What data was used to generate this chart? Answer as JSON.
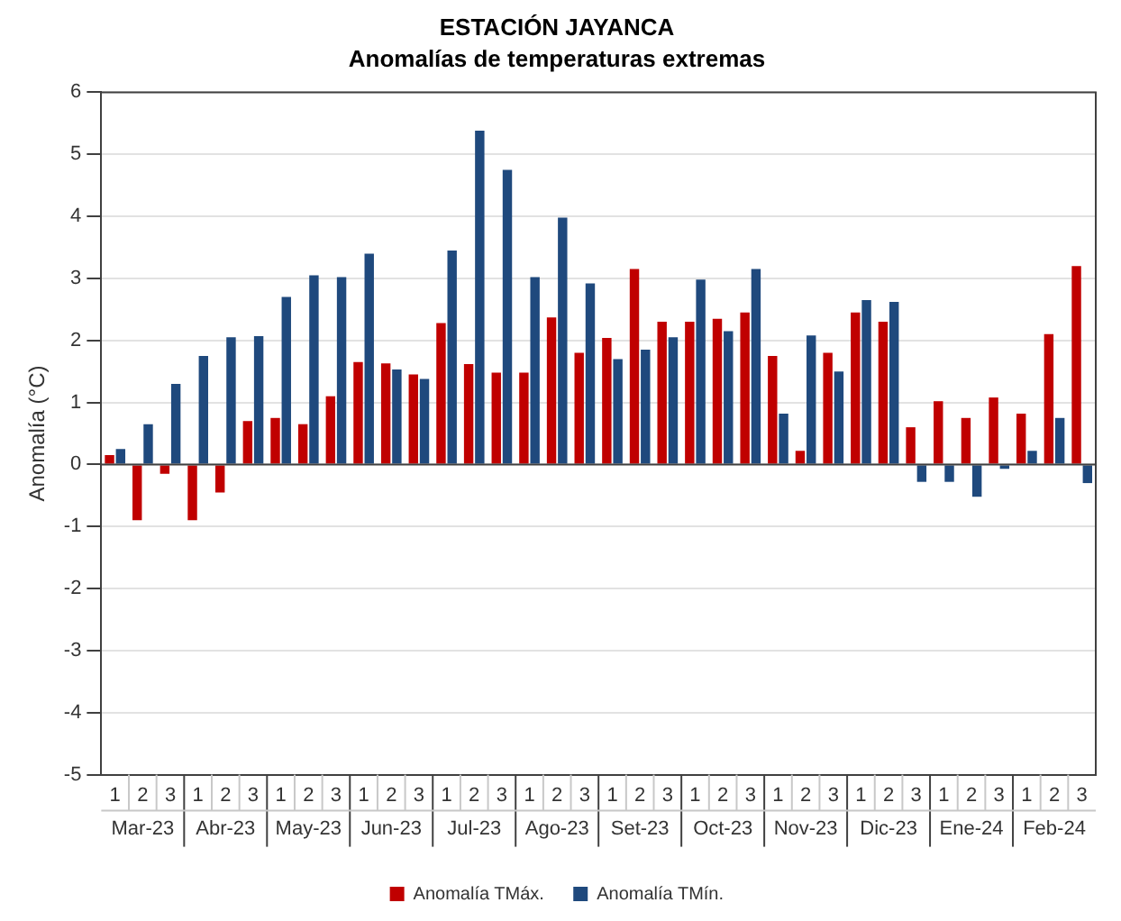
{
  "chart_data": {
    "type": "bar",
    "title": "ESTACIÓN JAYANCA",
    "subtitle": "Anomalías de temperaturas extremas",
    "ylabel": "Anomalía (°C)",
    "categories": [
      "1",
      "2",
      "3",
      "1",
      "2",
      "3",
      "1",
      "2",
      "3",
      "1",
      "2",
      "3",
      "1",
      "2",
      "3",
      "1",
      "2",
      "3",
      "1",
      "2",
      "3",
      "1",
      "2",
      "3",
      "1",
      "2",
      "3",
      "1",
      "2",
      "3",
      "1",
      "2",
      "3",
      "1",
      "2",
      "3"
    ],
    "annotations": [
      "Mar-23",
      "Abr-23",
      "May-23",
      "Jun-23",
      "Jul-23",
      "Ago-23",
      "Set-23",
      "Oct-23",
      "Nov-23",
      "Dic-23",
      "Ene-24",
      "Feb-24"
    ],
    "series": [
      {
        "name": "Anomalía TMáx.",
        "color": "#c00000",
        "values": [
          0.15,
          -0.9,
          -0.15,
          -0.9,
          -0.45,
          0.7,
          0.75,
          0.65,
          1.1,
          1.65,
          1.63,
          1.45,
          2.28,
          1.62,
          1.48,
          1.48,
          2.37,
          1.8,
          2.04,
          3.15,
          2.3,
          2.3,
          2.35,
          2.45,
          1.75,
          0.22,
          1.8,
          2.45,
          2.3,
          0.6,
          1.02,
          0.75,
          1.08,
          0.82,
          2.1,
          3.2
        ]
      },
      {
        "name": "Anomalía TMín.",
        "color": "#1f497d",
        "values": [
          0.25,
          0.65,
          1.3,
          1.75,
          2.05,
          2.07,
          2.7,
          3.05,
          3.02,
          3.4,
          1.53,
          1.38,
          3.45,
          5.38,
          4.75,
          3.02,
          3.98,
          2.92,
          1.7,
          1.85,
          2.05,
          2.98,
          2.15,
          3.15,
          0.82,
          2.08,
          1.5,
          2.65,
          2.62,
          -0.28,
          -0.28,
          -0.52,
          -0.07,
          0.22,
          0.75,
          -0.3
        ]
      }
    ],
    "ylim": [
      -5,
      6
    ],
    "yticks": [
      -5,
      -4,
      -3,
      -2,
      -1,
      0,
      1,
      2,
      3,
      4,
      5,
      6
    ],
    "grid": "y",
    "legend": "bottom"
  }
}
